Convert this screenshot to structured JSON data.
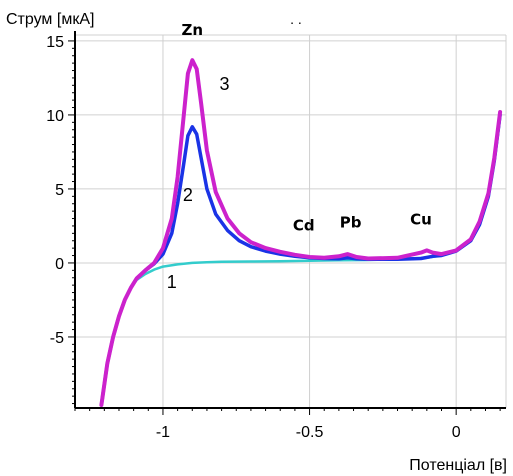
{
  "chart_data": {
    "type": "line",
    "title": "",
    "ylabel": "Струм [мкА]",
    "xlabel": "Потенціал [в]",
    "xlim": [
      -1.3,
      0.17
    ],
    "ylim": [
      -9.8,
      15.4
    ],
    "x_ticks": [
      -1,
      -0.5,
      0
    ],
    "x_tick_labels": [
      "-1",
      "-0.5",
      "0"
    ],
    "y_ticks": [
      -5,
      0,
      5,
      10,
      15
    ],
    "y_tick_labels": [
      "-5",
      "0",
      "5",
      "10",
      "15"
    ],
    "grid": true,
    "top_marker": ". .",
    "colors": {
      "curve1": "#33cccc",
      "curve2": "#1a33e6",
      "curve3": "#cc22cc"
    },
    "series": [
      {
        "name": "1",
        "x": [
          -1.21,
          -1.19,
          -1.17,
          -1.15,
          -1.13,
          -1.11,
          -1.09,
          -1.06,
          -1.03,
          -1.0,
          -0.95,
          -0.9,
          -0.85,
          -0.8,
          -0.7,
          -0.6,
          -0.5,
          -0.4,
          -0.3,
          -0.2,
          -0.1,
          -0.05,
          0.0,
          0.05,
          0.08,
          0.11,
          0.13,
          0.15
        ],
        "y": [
          -9.6,
          -6.8,
          -5.0,
          -3.6,
          -2.5,
          -1.7,
          -1.15,
          -0.75,
          -0.45,
          -0.25,
          -0.1,
          0.0,
          0.05,
          0.08,
          0.1,
          0.12,
          0.15,
          0.18,
          0.2,
          0.25,
          0.35,
          0.5,
          0.8,
          1.6,
          2.6,
          4.5,
          6.8,
          9.8
        ]
      },
      {
        "name": "2",
        "x": [
          -1.21,
          -1.19,
          -1.17,
          -1.15,
          -1.13,
          -1.11,
          -1.09,
          -1.06,
          -1.03,
          -1.0,
          -0.97,
          -0.95,
          -0.93,
          -0.915,
          -0.9,
          -0.885,
          -0.87,
          -0.85,
          -0.82,
          -0.78,
          -0.74,
          -0.7,
          -0.65,
          -0.6,
          -0.55,
          -0.5,
          -0.45,
          -0.4,
          -0.37,
          -0.34,
          -0.3,
          -0.2,
          -0.12,
          -0.08,
          -0.05,
          0.0,
          0.05,
          0.08,
          0.11,
          0.13,
          0.15
        ],
        "y": [
          -9.6,
          -6.8,
          -5.0,
          -3.6,
          -2.5,
          -1.7,
          -1.05,
          -0.5,
          -0.05,
          0.6,
          2.0,
          4.0,
          6.6,
          8.6,
          9.2,
          8.7,
          7.1,
          5.0,
          3.3,
          2.2,
          1.5,
          1.1,
          0.8,
          0.6,
          0.45,
          0.35,
          0.3,
          0.28,
          0.35,
          0.28,
          0.25,
          0.25,
          0.3,
          0.45,
          0.5,
          0.8,
          1.5,
          2.6,
          4.5,
          6.9,
          10.0
        ]
      },
      {
        "name": "3",
        "x": [
          -1.21,
          -1.19,
          -1.17,
          -1.15,
          -1.13,
          -1.11,
          -1.09,
          -1.06,
          -1.03,
          -1.0,
          -0.97,
          -0.95,
          -0.93,
          -0.915,
          -0.9,
          -0.885,
          -0.87,
          -0.85,
          -0.82,
          -0.78,
          -0.74,
          -0.7,
          -0.65,
          -0.6,
          -0.55,
          -0.5,
          -0.45,
          -0.4,
          -0.37,
          -0.34,
          -0.3,
          -0.2,
          -0.12,
          -0.1,
          -0.08,
          -0.05,
          0.0,
          0.05,
          0.08,
          0.11,
          0.13,
          0.15
        ],
        "y": [
          -9.6,
          -6.8,
          -5.0,
          -3.6,
          -2.5,
          -1.7,
          -1.05,
          -0.5,
          0.0,
          1.0,
          3.0,
          5.8,
          9.8,
          12.8,
          13.7,
          13.1,
          10.8,
          7.6,
          4.8,
          3.0,
          2.0,
          1.4,
          1.0,
          0.75,
          0.55,
          0.4,
          0.35,
          0.45,
          0.6,
          0.4,
          0.3,
          0.35,
          0.7,
          0.85,
          0.7,
          0.6,
          0.85,
          1.6,
          2.8,
          4.7,
          7.1,
          10.2
        ]
      }
    ],
    "annotations": [
      {
        "text": "Zn",
        "x": -0.9,
        "y": 15.4,
        "kind": "peak"
      },
      {
        "text": "Cd",
        "x": -0.52,
        "y": 2.2,
        "kind": "peak"
      },
      {
        "text": "Pb",
        "x": -0.36,
        "y": 2.4,
        "kind": "peak"
      },
      {
        "text": "Cu",
        "x": -0.12,
        "y": 2.6,
        "kind": "peak"
      },
      {
        "text": "3",
        "x": -0.79,
        "y": 11.7,
        "kind": "curve"
      },
      {
        "text": "2",
        "x": -0.915,
        "y": 4.2,
        "kind": "curve"
      },
      {
        "text": "1",
        "x": -0.97,
        "y": -1.7,
        "kind": "curve"
      }
    ]
  }
}
